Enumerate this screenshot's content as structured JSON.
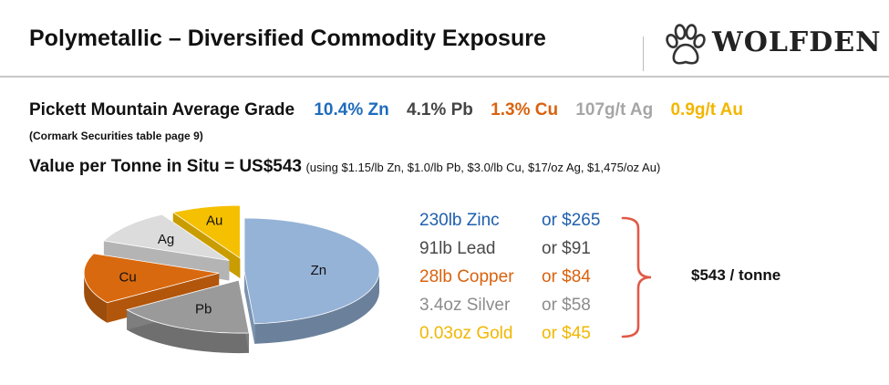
{
  "header": {
    "title": "Polymetallic – Diversified Commodity Exposure",
    "logo_text": "WOLFDEN",
    "logo_icon": "paw-icon"
  },
  "grade": {
    "label": "Pickett Mountain Average Grade",
    "items": [
      {
        "text": "10.4% Zn",
        "color": "#1f6bbd"
      },
      {
        "text": "4.1% Pb",
        "color": "#444444"
      },
      {
        "text": "1.3% Cu",
        "color": "#d9620f"
      },
      {
        "text": "107g/t Ag",
        "color": "#a6a6a6"
      },
      {
        "text": "0.9g/t Au",
        "color": "#f2b600"
      }
    ],
    "source": "(Cormark Securities table page 9)"
  },
  "value": {
    "main": "Value per Tonne in Situ = US$543",
    "assumptions": "(using $1.15/lb Zn, $1.0/lb Pb, $3.0/lb Cu, $17/oz Ag, $1,475/oz Au)"
  },
  "metals": [
    {
      "qty": "230lb Zinc",
      "value": "or $265",
      "color": "#1f5fae"
    },
    {
      "qty": "91lb Lead",
      "value": "or $91",
      "color": "#4a4a4a"
    },
    {
      "qty": "28lb Copper",
      "value": "or $84",
      "color": "#d9620f"
    },
    {
      "qty": "3.4oz Silver",
      "value": "or $58",
      "color": "#8c8c8c"
    },
    {
      "qty": "0.03oz Gold",
      "value": "or $45",
      "color": "#f2b600"
    }
  ],
  "total": "$543 / tonne",
  "chart_data": {
    "type": "pie",
    "title": "",
    "style": "3d-exploded",
    "slices": [
      {
        "label": "Zn",
        "value": 265,
        "color": "#95b3d7"
      },
      {
        "label": "Pb",
        "value": 91,
        "color": "#9a9a9a"
      },
      {
        "label": "Cu",
        "value": 84,
        "color": "#d9690f"
      },
      {
        "label": "Ag",
        "value": 58,
        "color": "#dcdcdc"
      },
      {
        "label": "Au",
        "value": 45,
        "color": "#f5c000"
      }
    ],
    "legend": "none"
  },
  "colors": {
    "brace": "#e05a47",
    "header_line": "#c8c8c8"
  }
}
